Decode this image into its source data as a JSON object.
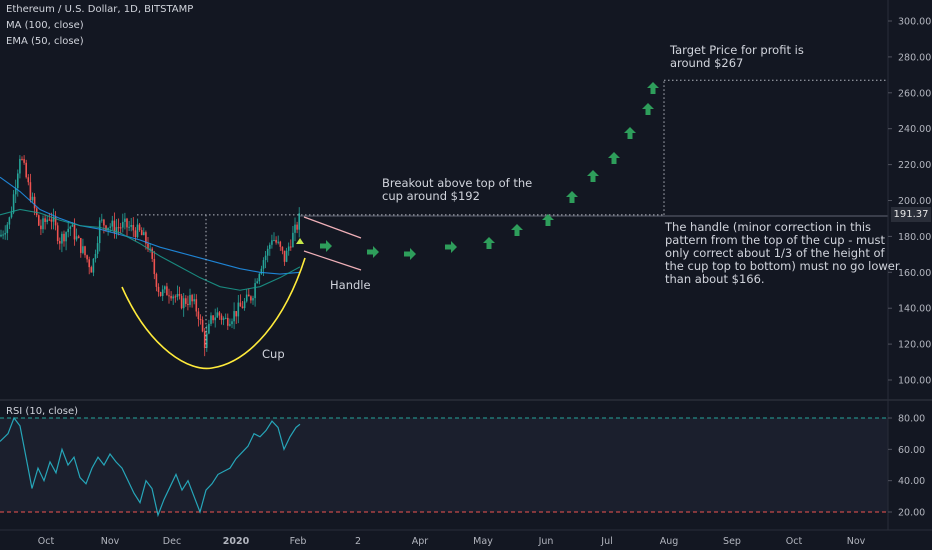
{
  "legend": {
    "title": "Ethereum / U.S. Dollar, 1D, BITSTAMP",
    "ma": "MA (100, close)",
    "ema": "EMA (50, close)",
    "rsi": "RSI (10, close)"
  },
  "current_price": "191.37",
  "annotations": {
    "target": "Target Price for profit is\naround $267",
    "breakout": "Breakout above top of the\ncup around $192",
    "handle_note": "The handle (minor correction in this\npattern from the top of the cup - must\nonly correct about 1/3 of the height of\nthe cup top to bottom) must no go lower\nthan about $166.",
    "handle_label": "Handle",
    "cup_label": "Cup"
  },
  "colors": {
    "background": "#131722",
    "candle_up": "#26a69a",
    "candle_down": "#ef5350",
    "ma": "#2196f3",
    "ema": "#1b9e8f",
    "cup_curve": "#ffeb3b",
    "arrows": "#2e9e5b",
    "handle_lines": "#f0b0b8",
    "rsi_line": "#26a6b9"
  },
  "chart_data": [
    {
      "type": "candlestick",
      "title": "Ethereum / U.S. Dollar, 1D, BITSTAMP",
      "x_tick_labels": [
        "Oct",
        "Nov",
        "Dec",
        "2020",
        "Feb",
        "2",
        "Apr",
        "May",
        "Jun",
        "Jul",
        "Aug",
        "Sep",
        "Oct",
        "Nov"
      ],
      "y_ticks": [
        100,
        120,
        140,
        160,
        180,
        200,
        220,
        240,
        260,
        280,
        300
      ],
      "y_tick_labels": [
        "100.00",
        "120.00",
        "140.00",
        "160.00",
        "180.00",
        "200.00",
        "220.00",
        "240.00",
        "260.00",
        "280.00",
        "300.00"
      ],
      "ylim": [
        91,
        306
      ],
      "last_price": 191.37,
      "breakout_level": 192,
      "target_price": 267,
      "handle_floor": 166,
      "price_path": [
        [
          0,
          180
        ],
        [
          10,
          190
        ],
        [
          20,
          226
        ],
        [
          32,
          200
        ],
        [
          40,
          184
        ],
        [
          50,
          192
        ],
        [
          60,
          178
        ],
        [
          70,
          186
        ],
        [
          80,
          175
        ],
        [
          92,
          162
        ],
        [
          100,
          188
        ],
        [
          115,
          185
        ],
        [
          125,
          186
        ],
        [
          140,
          182
        ],
        [
          148,
          175
        ],
        [
          155,
          158
        ],
        [
          160,
          148
        ],
        [
          170,
          150
        ],
        [
          180,
          143
        ],
        [
          190,
          145
        ],
        [
          198,
          138
        ],
        [
          205,
          120
        ],
        [
          212,
          135
        ],
        [
          218,
          137
        ],
        [
          225,
          133
        ],
        [
          232,
          136
        ],
        [
          238,
          139
        ],
        [
          245,
          143
        ],
        [
          252,
          147
        ],
        [
          258,
          160
        ],
        [
          262,
          166
        ],
        [
          268,
          172
        ],
        [
          272,
          180
        ],
        [
          278,
          175
        ],
        [
          285,
          167
        ],
        [
          290,
          177
        ],
        [
          296,
          184
        ],
        [
          300,
          191
        ]
      ],
      "series": [
        {
          "name": "MA (100, close)",
          "values": [
            [
              0,
              213
            ],
            [
              20,
              205
            ],
            [
              40,
              195
            ],
            [
              60,
              190
            ],
            [
              80,
              186
            ],
            [
              100,
              184
            ],
            [
              120,
              181
            ],
            [
              140,
              178
            ],
            [
              160,
              174
            ],
            [
              180,
              171
            ],
            [
              200,
              168
            ],
            [
              220,
              165
            ],
            [
              240,
              162
            ],
            [
              260,
              160
            ],
            [
              280,
              159
            ],
            [
              300,
              160
            ]
          ]
        },
        {
          "name": "EMA (50, close)",
          "values": [
            [
              0,
              192
            ],
            [
              20,
              195
            ],
            [
              40,
              193
            ],
            [
              60,
              189
            ],
            [
              80,
              186
            ],
            [
              100,
              185
            ],
            [
              120,
              182
            ],
            [
              140,
              176
            ],
            [
              160,
              169
            ],
            [
              180,
              163
            ],
            [
              200,
              157
            ],
            [
              220,
              152
            ],
            [
              240,
              150
            ],
            [
              260,
              152
            ],
            [
              280,
              157
            ],
            [
              300,
              163
            ]
          ]
        }
      ]
    },
    {
      "type": "line",
      "title": "RSI (10, close)",
      "y_ticks": [
        20,
        40,
        60,
        80
      ],
      "y_tick_labels": [
        "20.00",
        "40.00",
        "60.00",
        "80.00"
      ],
      "ylim": [
        13,
        87
      ],
      "overbought": 80,
      "oversold": 20,
      "x": [
        0,
        8,
        14,
        20,
        26,
        32,
        38,
        44,
        50,
        56,
        62,
        68,
        74,
        80,
        86,
        92,
        98,
        104,
        110,
        116,
        122,
        128,
        134,
        140,
        146,
        152,
        158,
        164,
        170,
        176,
        182,
        188,
        194,
        200,
        206,
        212,
        218,
        224,
        230,
        236,
        242,
        248,
        254,
        260,
        266,
        272,
        278,
        284,
        290,
        296,
        300
      ],
      "values": [
        65,
        70,
        80,
        75,
        55,
        35,
        48,
        40,
        52,
        45,
        60,
        50,
        55,
        42,
        38,
        48,
        55,
        50,
        57,
        52,
        48,
        40,
        32,
        26,
        40,
        35,
        18,
        28,
        36,
        44,
        34,
        40,
        30,
        20,
        34,
        38,
        44,
        46,
        48,
        54,
        58,
        62,
        70,
        68,
        72,
        78,
        74,
        60,
        68,
        74,
        76
      ]
    }
  ]
}
